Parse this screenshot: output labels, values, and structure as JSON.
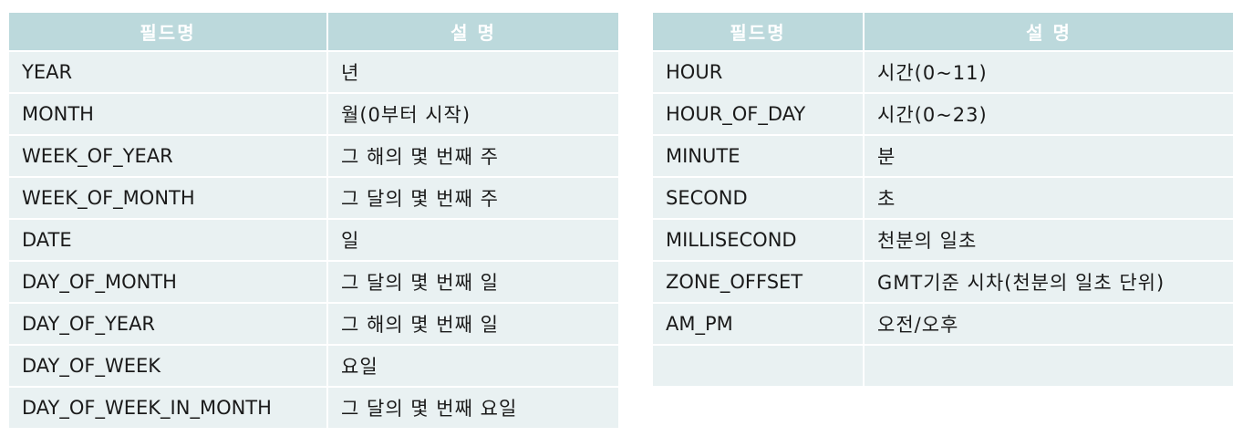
{
  "tables": [
    {
      "headers": [
        "필드명",
        "설 명"
      ],
      "rows": [
        [
          "YEAR",
          "년"
        ],
        [
          "MONTH",
          "월(0부터 시작)"
        ],
        [
          "WEEK_OF_YEAR",
          "그 해의 몇 번째 주"
        ],
        [
          "WEEK_OF_MONTH",
          "그 달의 몇 번째 주"
        ],
        [
          "DATE",
          "일"
        ],
        [
          "DAY_OF_MONTH",
          "그 달의 몇 번째 일"
        ],
        [
          "DAY_OF_YEAR",
          "그 해의 몇 번째 일"
        ],
        [
          "DAY_OF_WEEK",
          "요일"
        ],
        [
          "DAY_OF_WEEK_IN_MONTH",
          "그 달의 몇 번째 요일"
        ]
      ]
    },
    {
      "headers": [
        "필드명",
        "설 명"
      ],
      "rows": [
        [
          "HOUR",
          "시간(0~11)"
        ],
        [
          "HOUR_OF_DAY",
          "시간(0~23)"
        ],
        [
          "MINUTE",
          "분"
        ],
        [
          "SECOND",
          "초"
        ],
        [
          "MILLISECOND",
          "천분의 일초"
        ],
        [
          "ZONE_OFFSET",
          "GMT기준 시차(천분의 일초 단위)"
        ],
        [
          "AM_PM",
          "오전/오후"
        ],
        [
          "",
          ""
        ]
      ]
    }
  ],
  "colors": {
    "header_bg": "#bcd9dc",
    "row_bg": "#e9f1f2",
    "header_text": "#ffffff"
  }
}
